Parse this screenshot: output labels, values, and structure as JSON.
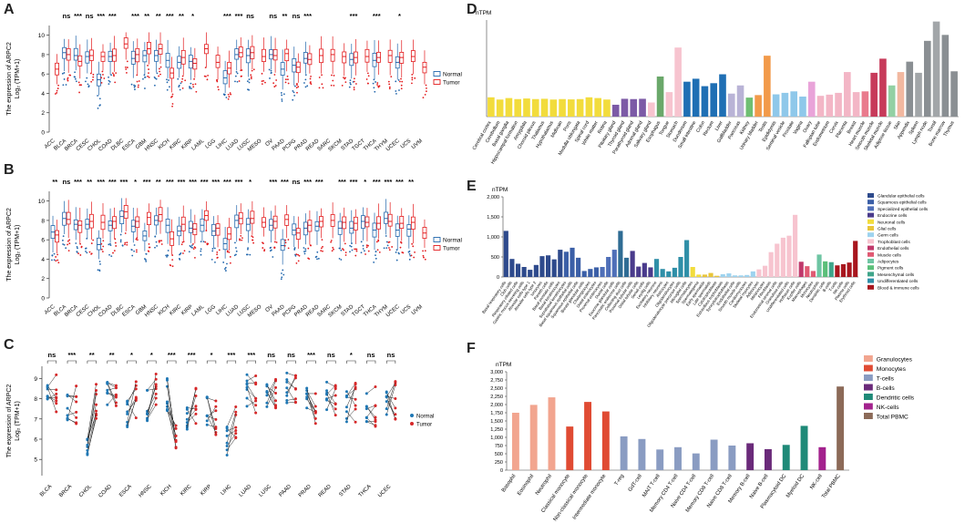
{
  "panel_labels": {
    "A": "A",
    "B": "B",
    "C": "C",
    "D": "D",
    "E": "E",
    "F": "F"
  },
  "colors": {
    "normal": "#2166ac",
    "tumor": "#e31a1c",
    "normal_c": "#1f77b4",
    "tumor_c": "#d62728"
  },
  "chart_data": [
    {
      "id": "A",
      "type": "boxplot",
      "ylabel_line1": "The expression of ARPC2",
      "ylabel_line2": "Log₂ (TPM+1)",
      "ylim": [
        0,
        11
      ],
      "yticks": [
        "0",
        "2",
        "4",
        "6",
        "8",
        "10"
      ],
      "legend": [
        "Normal",
        "Tumor"
      ],
      "categories": [
        "ACC",
        "BLCA",
        "BRCA",
        "CESC",
        "CHOL",
        "COAD",
        "DLBC",
        "ESCA",
        "GBM",
        "HNSC",
        "KICH",
        "KIRC",
        "KIRP",
        "LAML",
        "LGG",
        "LIHC",
        "LUAD",
        "LUSC",
        "MESO",
        "OV",
        "PAAD",
        "PCPG",
        "PRAD",
        "READ",
        "SARC",
        "SKCM",
        "STAD",
        "TGCT",
        "THCA",
        "THYM",
        "UCEC",
        "UCS",
        "UVM"
      ],
      "significance": [
        "",
        "ns",
        "***",
        "ns",
        "***",
        "***",
        "",
        "***",
        "**",
        "**",
        "***",
        "**",
        "*",
        "",
        "",
        "***",
        "***",
        "ns",
        "",
        "ns",
        "**",
        "ns",
        "***",
        "",
        "",
        "",
        "***",
        "",
        "***",
        "",
        "*",
        "",
        ""
      ],
      "normal_median": [
        null,
        8.2,
        7.9,
        7.8,
        5.4,
        7.8,
        null,
        7.6,
        7.9,
        7.9,
        7.4,
        7.2,
        7.3,
        null,
        null,
        5.6,
        8.0,
        7.9,
        null,
        8.0,
        6.5,
        6.9,
        7.6,
        null,
        null,
        null,
        7.5,
        null,
        7.4,
        null,
        7.2,
        null,
        null
      ],
      "tumor_median": [
        6.5,
        8.0,
        7.3,
        7.9,
        7.8,
        7.9,
        9.1,
        8.0,
        8.6,
        8.6,
        6.1,
        7.7,
        7.1,
        8.6,
        7.2,
        6.6,
        8.2,
        8.2,
        7.8,
        7.9,
        8.1,
        6.7,
        7.5,
        7.9,
        8.0,
        7.8,
        7.7,
        7.8,
        7.7,
        7.9,
        7.7,
        7.8,
        6.7
      ]
    },
    {
      "id": "B",
      "type": "boxplot",
      "ylabel_line1": "The expression of ARPC2",
      "ylabel_line2": "Log₂ (TPM+1)",
      "ylim": [
        0,
        11
      ],
      "yticks": [
        "0",
        "2",
        "4",
        "6",
        "8",
        "10"
      ],
      "legend": [
        "Normal",
        "Tumor"
      ],
      "categories": [
        "ACC",
        "BLCA",
        "BRCA",
        "CESC",
        "CHOL",
        "COAD",
        "DLBC",
        "ESCA",
        "GBM",
        "HNSC",
        "KICH",
        "KIRC",
        "KIRP",
        "LAML",
        "LGG",
        "LIHC",
        "LUAD",
        "LUSC",
        "MESO",
        "OV",
        "PAAD",
        "PCPG",
        "PRAD",
        "READ",
        "SARC",
        "SKCM",
        "STAD",
        "TGCT",
        "THCA",
        "THYM",
        "UCEC",
        "UCS",
        "UVM"
      ],
      "significance": [
        "**",
        "ns",
        "***",
        "**",
        "***",
        "***",
        "***",
        "*",
        "***",
        "**",
        "***",
        "***",
        "***",
        "***",
        "***",
        "***",
        "***",
        "*",
        "",
        "***",
        "***",
        "ns",
        "***",
        "***",
        "",
        "***",
        "***",
        "*",
        "***",
        "***",
        "***",
        "**",
        ""
      ],
      "normal_median": [
        6.8,
        8.2,
        7.6,
        7.6,
        5.5,
        7.5,
        8.4,
        7.4,
        6.4,
        8.0,
        7.5,
        6.9,
        7.2,
        7.5,
        6.9,
        5.6,
        8.0,
        7.6,
        null,
        7.5,
        5.4,
        7.0,
        7.2,
        7.4,
        null,
        7.2,
        7.2,
        7.9,
        7.0,
        8.2,
        7.0,
        7.1,
        null
      ],
      "tumor_median": [
        6.5,
        8.1,
        7.5,
        7.9,
        7.8,
        7.9,
        8.9,
        7.9,
        8.3,
        8.6,
        6.1,
        7.6,
        7.1,
        8.5,
        7.2,
        6.6,
        8.2,
        8.2,
        7.8,
        7.9,
        8.1,
        6.7,
        7.5,
        7.9,
        8.0,
        7.8,
        7.7,
        7.8,
        7.7,
        7.9,
        7.7,
        7.8,
        6.7
      ]
    },
    {
      "id": "C",
      "type": "paired",
      "ylabel_line1": "The expression of ARPC2",
      "ylabel_line2": "Log₂ (TPM+1)",
      "ylim": [
        4.2,
        9.6
      ],
      "yticks": [
        "5",
        "6",
        "7",
        "8",
        "9"
      ],
      "legend": [
        "Normal",
        "Tumor"
      ],
      "categories": [
        "BLCA",
        "BRCA",
        "CHOL",
        "COAD",
        "ESCA",
        "HNSC",
        "KICH",
        "KIRC",
        "KIRP",
        "LIHC",
        "LUAD",
        "LUSC",
        "PAAD",
        "PRAD",
        "READ",
        "STAD",
        "THCA",
        "UCEC"
      ],
      "significance": [
        "ns",
        "***",
        "**",
        "**",
        "*",
        "*",
        "***",
        "***",
        "*",
        "***",
        "***",
        "ns",
        "ns",
        "***",
        "ns",
        "*",
        "ns",
        "ns"
      ],
      "normal_mean": [
        8.3,
        7.6,
        6.0,
        8.3,
        7.4,
        7.7,
        8.2,
        7.2,
        7.3,
        6.0,
        8.4,
        8.3,
        8.5,
        7.8,
        8.1,
        7.6,
        7.6,
        7.6
      ],
      "tumor_mean": [
        8.2,
        7.7,
        7.8,
        8.0,
        8.0,
        8.7,
        6.3,
        7.7,
        7.2,
        7.0,
        8.3,
        8.3,
        8.4,
        7.3,
        8.0,
        7.8,
        7.6,
        7.9
      ]
    },
    {
      "id": "D",
      "type": "bar",
      "ylabel": "nTPM",
      "ylim": [
        0,
        650
      ],
      "categories": [
        "Cerebral cortex",
        "Cerebellum",
        "Basal ganglia",
        "Hippocampal formation",
        "Amygdala",
        "Choroid plexus",
        "Thalamus",
        "Hypothalamus",
        "Midbrain",
        "Pons",
        "Medulla oblongata",
        "Spinal cord",
        "White matter",
        "Retina",
        "Pituitary gland",
        "Thyroid gland",
        "Parathyroid gland",
        "Adrenal gland",
        "Salivary gland",
        "Esophagus",
        "Tongue",
        "Stomach",
        "Duodenum",
        "Small intestine",
        "Colon",
        "Rectum",
        "Liver",
        "Gallbladder",
        "Pancreas",
        "Kidney",
        "Urinary bladder",
        "Testis",
        "Epididymis",
        "Seminal vesicle",
        "Prostate",
        "Vagina",
        "Ovary",
        "Fallopian tube",
        "Endometrium",
        "Cervix",
        "Placenta",
        "Breast",
        "Heart muscle",
        "Smooth muscle",
        "Skeletal muscle",
        "Adipose tissue",
        "Skin",
        "Appendix",
        "Spleen",
        "Lymph node",
        "Tonsil",
        "Bone marrow",
        "Thymus"
      ],
      "values": [
        130,
        115,
        125,
        118,
        122,
        118,
        120,
        115,
        118,
        116,
        118,
        130,
        125,
        115,
        80,
        120,
        118,
        120,
        95,
        270,
        165,
        465,
        235,
        255,
        205,
        225,
        285,
        155,
        210,
        128,
        145,
        410,
        150,
        160,
        170,
        135,
        235,
        140,
        148,
        160,
        300,
        165,
        170,
        295,
        390,
        210,
        300,
        370,
        295,
        510,
        640,
        550,
        305
      ],
      "tick_labels_shown": [
        "Cerebral cortex",
        "Cerebellum",
        "Basal ganglia",
        "Hippocampal formation",
        "Amygdala",
        "Choroid plexus",
        "Thalamus",
        "Hypothalamus",
        "Midbrain",
        "Pons",
        "Medulla oblongata",
        "Spinal cord",
        "White matter",
        "Retina",
        "Pituitary gland",
        "Thyroid gland",
        "Parathyroid gland",
        "Adrenal gland",
        "Salivary gland",
        "Esophagus",
        "Tongue",
        "Stomach",
        "Duodenum",
        "Small intestine",
        "Colon",
        "Rectum",
        "Liver",
        "Gallbladder",
        "Pancreas",
        "Kidney",
        "Urinary bladder",
        "Testis",
        "Epididymis",
        "Seminal vesicle",
        "Prostate",
        "Vagina",
        "Ovary",
        "Fallopian tube",
        "Endometrium",
        "Cervix",
        "Placenta",
        "Breast",
        "Heart muscle",
        "Smooth muscle",
        "Skeletal muscle",
        "Adipose tissue",
        "Skin",
        "Appendix",
        "Spleen",
        "Lymph node",
        "Tonsil",
        "Bone marrow",
        "Thymus"
      ],
      "bar_colors": [
        "#f2dc3c",
        "#f2dc3c",
        "#f2dc3c",
        "#f2dc3c",
        "#f2dc3c",
        "#f2dc3c",
        "#f2dc3c",
        "#f2dc3c",
        "#f2dc3c",
        "#f2dc3c",
        "#f2dc3c",
        "#f2dc3c",
        "#f2dc3c",
        "#f2dc3c",
        "#7c5aa6",
        "#7c5aa6",
        "#7c5aa6",
        "#7c5aa6",
        "#f7c4cf",
        "#6aa86a",
        "#f7c4cf",
        "#f7c4cf",
        "#1f6fb4",
        "#1f6fb4",
        "#1f6fb4",
        "#1f6fb4",
        "#1f6fb4",
        "#b9b3d6",
        "#b9b3d6",
        "#6fbf73",
        "#f29a4a",
        "#f29a4a",
        "#8fc8ea",
        "#8fc8ea",
        "#8fc8ea",
        "#8fc8ea",
        "#e9a3d9",
        "#f3b6c6",
        "#f3b6c6",
        "#f3b6c6",
        "#f3b6c6",
        "#f3b6c6",
        "#e97b8d",
        "#c73a5a",
        "#c73a5a",
        "#93d0a3",
        "#f2b8a0",
        "#8a8f93",
        "#a2a6a9",
        "#8a8f93",
        "#a2a6a9",
        "#8a8f93",
        "#8a8f93"
      ]
    },
    {
      "id": "E",
      "type": "bar",
      "ylabel": "nTPM",
      "ylim": [
        0,
        2000
      ],
      "yticks": [
        "0",
        "500",
        "1,000",
        "1,500",
        "2,000"
      ],
      "legend": [
        "Glandular epithelial cells",
        "Squamous epithelial cells",
        "Specialized epithelial cells",
        "Endocrine cells",
        "Neuronal cells",
        "Glial cells",
        "Germ cells",
        "Trophoblast cells",
        "Endothelial cells",
        "Muscle cells",
        "Adipocytes",
        "Pigment cells",
        "Mesenchymal cells",
        "Undifferentiated cells",
        "Blood & immune cells"
      ],
      "legend_colors": [
        "#2e4a8c",
        "#3b5fa7",
        "#4f6fb8",
        "#4a3b8c",
        "#f2dc3c",
        "#e8c53a",
        "#9ed3ef",
        "#f7c4cf",
        "#c0396b",
        "#e05a73",
        "#6ec5a3",
        "#5bbf7a",
        "#3fa58a",
        "#2f8fa8",
        "#a8161e"
      ],
      "categories": [
        "Basal respiratory cells",
        "Club cells",
        "Respiratory ciliated cells",
        "Gastric mucus-secreting cells",
        "Alveolar cells type 1",
        "Alveolar cells type 2",
        "Ionocytes",
        "Paneth cells",
        "Basal prostatic cells",
        "Basal keratinocytes",
        "Suprabasal keratinocytes",
        "Basal squamous epithelial cells",
        "Squamous epithelial cells",
        "Breast glandular cells",
        "Cholangiocytes",
        "Distal enterocytes",
        "Proximal enterocytes",
        "Ductal cells",
        "Exocrine glandular cells",
        "Pancreatic endocrine cells",
        "Collecting duct cells",
        "Proximal tubular cells",
        "Distal tubular cells",
        "Sertoli cells",
        "Leydig cells",
        "Excitatory neurons",
        "Inhibitory neurons",
        "Astrocytes",
        "Oligodendrocytes",
        "Oligodendrocyte precursor cells",
        "Microglial cells",
        "Spermatocytes",
        "Spermatogonia",
        "Early spermatids",
        "Late spermatids",
        "Cytotrophoblasts",
        "Extravillous trophoblasts",
        "Syncytiotrophoblasts",
        "Endothelial cells",
        "Smooth muscle cells",
        "Cardiomyocytes",
        "Skeletal myocytes",
        "Adipocytes",
        "Melanocytes",
        "Fibroblasts",
        "Endometrial stromal cells",
        "Granulosa cells",
        "Undifferentiated cells",
        "Hofbauer cells",
        "Kupffer cells",
        "Macrophages",
        "Monocytes",
        "Neutrophils",
        "Dendritic cells",
        "B-cells",
        "T-cells",
        "NK-cells",
        "Plasma cells",
        "Erythroid cells"
      ],
      "values": [
        1150,
        450,
        330,
        250,
        180,
        300,
        520,
        540,
        440,
        680,
        630,
        730,
        480,
        150,
        200,
        240,
        250,
        500,
        680,
        1150,
        480,
        650,
        260,
        350,
        240,
        450,
        200,
        140,
        230,
        500,
        920,
        250,
        60,
        60,
        100,
        30,
        70,
        90,
        40,
        40,
        50,
        140,
        190,
        280,
        620,
        830,
        980,
        1030,
        1550,
        380,
        270,
        150,
        560,
        390,
        370,
        290,
        320,
        360,
        900
      ],
      "bar_colors": [
        "#2e4a8c",
        "#2e4a8c",
        "#2e4a8c",
        "#2e4a8c",
        "#2e4a8c",
        "#2e4a8c",
        "#2e4a8c",
        "#2e4a8c",
        "#2e4a8c",
        "#2e4a8c",
        "#3b5fa7",
        "#3b5fa7",
        "#3b5fa7",
        "#3b5fa7",
        "#3b5fa7",
        "#3b5fa7",
        "#4f6fb8",
        "#4f6fb8",
        "#4f6fb8",
        "#2f6c94",
        "#2f6c94",
        "#4a3b8c",
        "#4a3b8c",
        "#4a3b8c",
        "#4a3b8c",
        "#2f8fa8",
        "#2f8fa8",
        "#2f8fa8",
        "#2f8fa8",
        "#2f8fa8",
        "#2f8fa8",
        "#f2dc3c",
        "#f2dc3c",
        "#e8c53a",
        "#e8c53a",
        "#e8c53a",
        "#9ed3ef",
        "#9ed3ef",
        "#9ed3ef",
        "#9ed3ef",
        "#9ed3ef",
        "#9ed3ef",
        "#f7c4cf",
        "#f7c4cf",
        "#f7c4cf",
        "#f7c4cf",
        "#f7c4cf",
        "#f7c4cf",
        "#f7c4cf",
        "#c0396b",
        "#e05a73",
        "#e05a73",
        "#6ec5a3",
        "#5bbf7a",
        "#3fa58a",
        "#a8161e",
        "#a8161e",
        "#a8161e",
        "#a8161e"
      ]
    },
    {
      "id": "F",
      "type": "bar",
      "ylabel": "nTPM",
      "ylim": [
        0,
        3000
      ],
      "yticks": [
        "0",
        "250",
        "500",
        "750",
        "1,000",
        "1,250",
        "1,500",
        "1,750",
        "2,000",
        "2,250",
        "2,500",
        "2,750",
        "3,000"
      ],
      "legend": [
        "Granulocytes",
        "Monocytes",
        "T-cells",
        "B-cells",
        "Dendritic cells",
        "NK-cells",
        "Total PBMC"
      ],
      "legend_colors": [
        "#f2a58f",
        "#e04b33",
        "#8a9cc2",
        "#6a2a7a",
        "#1f8a78",
        "#a3228d",
        "#8c6a58"
      ],
      "categories": [
        "Basophil",
        "Eosinophil",
        "Neutrophil",
        "Classical monocyte",
        "Non-classical monocyte",
        "Intermediate monocyte",
        "T-reg",
        "GdT-cell",
        "MAIT T-cell",
        "Memory CD4 T-cell",
        "Naive CD4 T-cell",
        "Memory CD8 T-cell",
        "Naive CD8 T-cell",
        "Memory B-cell",
        "Naive B-cell",
        "Plasmacytoid DC",
        "Myeloid DC",
        "NK-cell",
        "Total PBMC"
      ],
      "values": [
        1750,
        1990,
        2220,
        1330,
        2080,
        1790,
        1030,
        950,
        630,
        700,
        510,
        930,
        750,
        820,
        640,
        770,
        1350,
        700,
        2550
      ],
      "bar_colors": [
        "#f2a58f",
        "#f2a58f",
        "#f2a58f",
        "#e04b33",
        "#e04b33",
        "#e04b33",
        "#8a9cc2",
        "#8a9cc2",
        "#8a9cc2",
        "#8a9cc2",
        "#8a9cc2",
        "#8a9cc2",
        "#8a9cc2",
        "#6a2a7a",
        "#6a2a7a",
        "#1f8a78",
        "#1f8a78",
        "#a3228d",
        "#8c6a58"
      ]
    }
  ]
}
